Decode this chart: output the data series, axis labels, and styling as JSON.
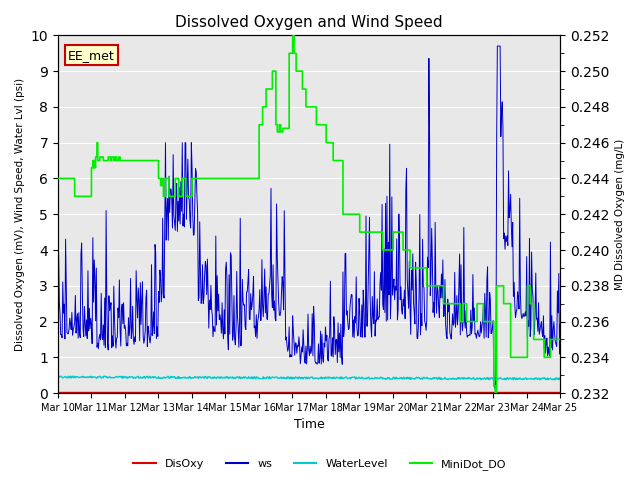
{
  "title": "Dissolved Oxygen and Wind Speed",
  "ylabel_left": "Dissolved Oxygen (mV), Wind Speed, Water Lvl (psi)",
  "ylabel_right": "MD Dissolved Oxygen (mg/L)",
  "xlabel": "Time",
  "annotation": "EE_met",
  "ylim_left": [
    0.0,
    10.0
  ],
  "ylim_right": [
    0.232,
    0.252
  ],
  "x_ticks": [
    "Mar 10",
    "Mar 11",
    "Mar 12",
    "Mar 13",
    "Mar 14",
    "Mar 15",
    "Mar 16",
    "Mar 17",
    "Mar 18",
    "Mar 19",
    "Mar 20",
    "Mar 21",
    "Mar 22",
    "Mar 23",
    "Mar 24",
    "Mar 25"
  ],
  "colors": {
    "DisOxy": "#dd0000",
    "ws": "#0000cc",
    "WaterLevel": "#00cccc",
    "MiniDot_DO": "#00ee00",
    "background": "#e8e8e8",
    "annotation_bg": "#ffffcc",
    "annotation_border": "#cc0000"
  },
  "legend_labels": [
    "DisOxy",
    "ws",
    "WaterLevel",
    "MiniDot_DO"
  ],
  "yticks_left": [
    0.0,
    1.0,
    2.0,
    3.0,
    4.0,
    5.0,
    6.0,
    7.0,
    8.0,
    9.0,
    10.0
  ],
  "yticks_right": [
    0.232,
    0.234,
    0.236,
    0.238,
    0.24,
    0.242,
    0.244,
    0.246,
    0.248,
    0.25,
    0.252
  ]
}
